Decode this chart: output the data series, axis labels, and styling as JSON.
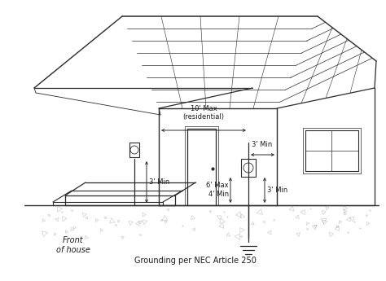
{
  "fig_width": 4.74,
  "fig_height": 3.45,
  "dpi": 100,
  "lc": "#2a2a2a",
  "tc": "#1a1a1a",
  "labels": {
    "front_of_house": "Front\nof house",
    "grounding": "Grounding per NEC Article 250",
    "meter_height": "6' Max\n4' Min",
    "clearance_3min_left": "3' Min",
    "clearance_3min_right": "3' Min",
    "clearance_3min_vert": "3' Min",
    "clearance_10max": "10' Max\n(residential)"
  }
}
